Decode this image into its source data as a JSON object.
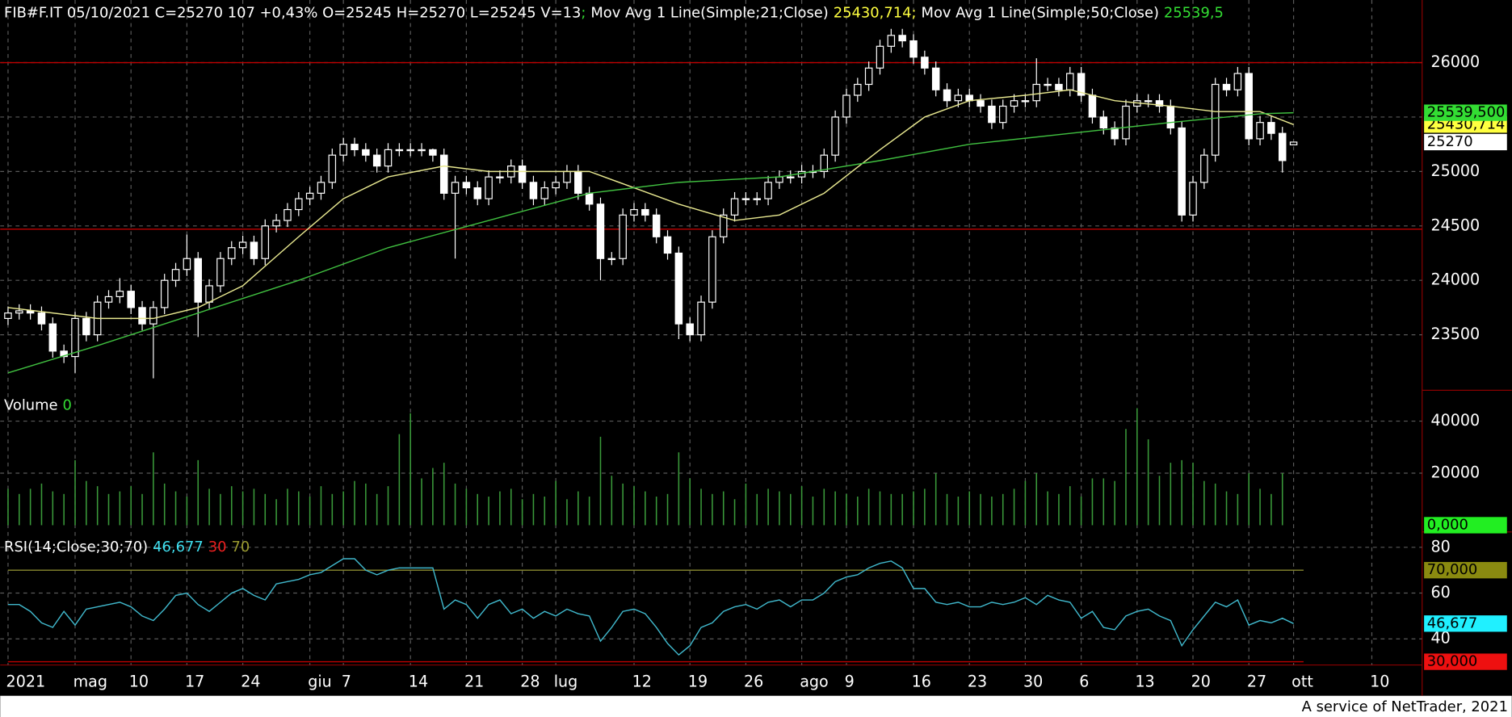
{
  "chart_data": [
    {
      "type": "candlestick",
      "header": [
        {
          "text": "FIB#F.IT 05/10/2021 C=25270 107 +0,43% O=25245 H=25270 L=25245 V=13",
          "color": "#ffffff"
        },
        {
          "text": ";",
          "color": "#33dd33"
        },
        {
          "text": "Mov Avg 1 Line(Simple;21;Close)",
          "color": "#ffffff"
        },
        {
          "text": "25430,714;",
          "color": "#ffff40"
        },
        {
          "text": "Mov Avg 1 Line(Simple;50;Close)",
          "color": "#ffffff"
        },
        {
          "text": "25539,5",
          "color": "#33dd33"
        }
      ],
      "xlim": [
        -0.7,
        126.5
      ],
      "ylim": [
        22990,
        26575
      ],
      "yticks": [
        23500,
        24000,
        24500,
        25000,
        25500,
        26000
      ],
      "hlines": [
        26000,
        24470
      ],
      "hline_color": "#c00000",
      "up_color": "#000000",
      "down_color": "#ffffff",
      "open": [
        23650,
        23700,
        23720,
        23700,
        23600,
        23350,
        23300,
        23650,
        23500,
        23800,
        23850,
        23900,
        23750,
        23600,
        23750,
        24000,
        24100,
        24200,
        23800,
        23950,
        24200,
        24300,
        24350,
        24200,
        24500,
        24550,
        24650,
        24750,
        24800,
        24900,
        25150,
        25250,
        25200,
        25150,
        25050,
        25200,
        25200,
        25200,
        25200,
        25150,
        24800,
        24900,
        24850,
        24750,
        24950,
        24950,
        25050,
        24900,
        24750,
        24850,
        24900,
        25000,
        24800,
        24700,
        24200,
        24200,
        24600,
        24650,
        24600,
        24400,
        24250,
        23600,
        23500,
        23800,
        24400,
        24600,
        24750,
        24750,
        24750,
        24900,
        24950,
        24950,
        25000,
        25000,
        25150,
        25500,
        25700,
        25800,
        25950,
        26150,
        26250,
        26200,
        26050,
        25950,
        25750,
        25650,
        25700,
        25650,
        25600,
        25450,
        25600,
        25650,
        25650,
        25800,
        25800,
        25750,
        25900,
        25700,
        25500,
        25400,
        25300,
        25600,
        25650,
        25650,
        25600,
        25400,
        24600,
        24900,
        25150,
        25800,
        25750,
        25900,
        25300,
        25450,
        25350,
        25245
      ],
      "high": [
        23760,
        23780,
        23780,
        23760,
        23660,
        23410,
        23710,
        23710,
        23860,
        23910,
        24020,
        23960,
        23810,
        23810,
        24060,
        24160,
        24420,
        24260,
        24010,
        24260,
        24360,
        24410,
        24410,
        24560,
        24610,
        24710,
        24810,
        24860,
        24960,
        25210,
        25310,
        25310,
        25260,
        25210,
        25260,
        25260,
        25260,
        25260,
        25210,
        25210,
        24960,
        24960,
        24910,
        25010,
        25010,
        25110,
        25110,
        24960,
        24910,
        24960,
        25060,
        25060,
        24860,
        24760,
        24260,
        24660,
        24710,
        24710,
        24660,
        24460,
        24310,
        23660,
        23860,
        24460,
        24660,
        24810,
        24810,
        24810,
        24960,
        25010,
        25010,
        25060,
        25060,
        25210,
        25560,
        25760,
        25860,
        26010,
        26210,
        26310,
        26310,
        26260,
        26110,
        26010,
        25810,
        25760,
        25760,
        25710,
        25660,
        25660,
        25710,
        25710,
        26040,
        25860,
        25860,
        25960,
        25960,
        25760,
        25560,
        25460,
        25660,
        25710,
        25710,
        25710,
        25660,
        25460,
        24960,
        25210,
        25860,
        25860,
        25960,
        25960,
        25510,
        25510,
        25410,
        25270
      ],
      "low": [
        23590,
        23640,
        23640,
        23540,
        23290,
        23240,
        23150,
        23440,
        23440,
        23740,
        23790,
        23690,
        23540,
        23100,
        23690,
        23940,
        24040,
        23480,
        23740,
        23890,
        24140,
        24240,
        24140,
        24140,
        24440,
        24490,
        24590,
        24690,
        24740,
        24840,
        25090,
        25140,
        25090,
        24990,
        24990,
        25140,
        25140,
        25140,
        25090,
        24740,
        24200,
        24790,
        24690,
        24690,
        24890,
        24890,
        24840,
        24690,
        24690,
        24790,
        24840,
        24740,
        24640,
        24000,
        24140,
        24140,
        24540,
        24540,
        24340,
        24190,
        23460,
        23440,
        23440,
        23740,
        24340,
        24540,
        24690,
        24690,
        24690,
        24840,
        24890,
        24890,
        24940,
        24940,
        25090,
        25440,
        25640,
        25740,
        25890,
        26090,
        26140,
        25990,
        25890,
        25690,
        25590,
        25590,
        25590,
        25540,
        25390,
        25390,
        25540,
        25590,
        25590,
        25740,
        25690,
        25690,
        25640,
        25440,
        25340,
        25240,
        25240,
        25540,
        25590,
        25540,
        25340,
        24540,
        24540,
        24840,
        25090,
        25690,
        25690,
        25240,
        25240,
        25290,
        24990,
        25245
      ],
      "close": [
        23700,
        23720,
        23700,
        23600,
        23350,
        23300,
        23650,
        23500,
        23800,
        23850,
        23900,
        23750,
        23600,
        23750,
        24000,
        24100,
        24200,
        23800,
        23950,
        24200,
        24300,
        24350,
        24200,
        24500,
        24550,
        24650,
        24750,
        24800,
        24900,
        25150,
        25250,
        25200,
        25150,
        25050,
        25200,
        25200,
        25200,
        25200,
        25150,
        24800,
        24900,
        24850,
        24750,
        24950,
        24950,
        25050,
        24900,
        24750,
        24850,
        24900,
        25000,
        24800,
        24700,
        24200,
        24200,
        24600,
        24650,
        24600,
        24400,
        24250,
        23600,
        23500,
        23800,
        24400,
        24600,
        24750,
        24750,
        24750,
        24900,
        24950,
        24950,
        25000,
        25000,
        25150,
        25500,
        25700,
        25800,
        25950,
        26150,
        26250,
        26200,
        26050,
        25950,
        25750,
        25650,
        25700,
        25650,
        25600,
        25450,
        25600,
        25650,
        25650,
        25800,
        25800,
        25750,
        25900,
        25700,
        25500,
        25400,
        25300,
        25600,
        25650,
        25650,
        25600,
        25400,
        24600,
        24900,
        25150,
        25800,
        25750,
        25900,
        25300,
        25450,
        25350,
        25100,
        25270
      ],
      "series": [
        {
          "color": "#e8e890",
          "x": [
            0,
            8,
            13,
            17,
            21,
            26,
            30,
            34,
            39,
            43,
            52,
            56,
            60,
            65,
            69,
            73,
            78,
            82,
            86,
            91,
            95,
            99,
            104,
            108,
            112,
            115
          ],
          "values": [
            23750,
            23650,
            23650,
            23750,
            23950,
            24400,
            24750,
            24950,
            25050,
            25000,
            25000,
            24850,
            24700,
            24550,
            24600,
            24800,
            25200,
            25500,
            25650,
            25700,
            25750,
            25650,
            25600,
            25550,
            25550,
            25430.714
          ]
        },
        {
          "color": "#40c040",
          "x": [
            0,
            8,
            17,
            26,
            34,
            43,
            52,
            60,
            69,
            78,
            86,
            95,
            104,
            112,
            115
          ],
          "values": [
            23150,
            23400,
            23700,
            24000,
            24300,
            24550,
            24800,
            24900,
            24950,
            25100,
            25250,
            25350,
            25450,
            25530,
            25539.5
          ]
        }
      ],
      "value_boxes": [
        {
          "value": 25430.714,
          "label": "25430,714",
          "color": "#ffff40"
        },
        {
          "value": 25270,
          "label": "25270",
          "color": "#ffffff"
        },
        {
          "value": 25539.5,
          "label": "25539,500",
          "color": "#33dd33"
        }
      ]
    },
    {
      "type": "bar",
      "legend": [
        {
          "text": "Volume",
          "color": "#ffffff"
        },
        {
          "text": "0",
          "color": "#33dd33"
        }
      ],
      "xlim": [
        -0.7,
        126.5
      ],
      "ylim": [
        -2600,
        51850
      ],
      "yticks": [
        20000,
        40000
      ],
      "color": "#3a9a3a",
      "values": [
        14000,
        12000,
        14000,
        16000,
        13000,
        12000,
        25000,
        17000,
        15000,
        12000,
        13000,
        15000,
        12000,
        28000,
        16000,
        13000,
        11000,
        25000,
        14000,
        12000,
        15000,
        13000,
        14000,
        12000,
        10000,
        14000,
        13000,
        11000,
        15000,
        12000,
        13000,
        17000,
        16000,
        12000,
        15000,
        35000,
        43000,
        18000,
        22000,
        24000,
        16000,
        14000,
        12000,
        11000,
        13000,
        14000,
        10000,
        12000,
        11000,
        17000,
        10000,
        13000,
        11000,
        34000,
        19000,
        16000,
        15000,
        13000,
        11000,
        12000,
        28000,
        18000,
        14000,
        12000,
        13000,
        10000,
        16000,
        12000,
        14000,
        13000,
        12000,
        15000,
        11000,
        14000,
        13000,
        12000,
        11000,
        14000,
        13000,
        12000,
        12000,
        13000,
        14000,
        20000,
        12000,
        11000,
        13000,
        12000,
        11000,
        12000,
        14000,
        17000,
        20000,
        13000,
        12000,
        15000,
        11000,
        18000,
        18000,
        17000,
        37000,
        45000,
        33000,
        19000,
        24000,
        25000,
        24000,
        17000,
        16000,
        13000,
        12000,
        20000,
        14000,
        12000,
        20000,
        0
      ],
      "value_boxes": [
        {
          "value": 0,
          "label": "0,000",
          "color": "#22ee22"
        }
      ]
    },
    {
      "type": "line",
      "legend": [
        {
          "text": "RSI(14;Close;30;70)",
          "color": "#ffffff"
        },
        {
          "text": "46,677",
          "color": "#40e0f0"
        },
        {
          "text": "30",
          "color": "#ee2020"
        },
        {
          "text": "70",
          "color": "#9a9a30"
        }
      ],
      "xlim": [
        -0.7,
        126.5
      ],
      "ylim": [
        28.6,
        86.7
      ],
      "yticks": [
        40,
        60,
        80
      ],
      "color": "#40b8cc",
      "hlines": [
        {
          "value": 70,
          "color": "#8a8a30"
        },
        {
          "value": 30,
          "color": "#c00000"
        }
      ],
      "values": [
        55,
        55,
        52,
        47,
        45,
        52,
        46,
        53,
        54,
        55,
        56,
        54,
        50,
        48,
        53,
        59,
        60,
        55,
        52,
        56,
        60,
        62,
        59,
        57,
        64,
        65,
        66,
        68,
        69,
        72,
        75,
        75,
        70,
        68,
        70,
        71,
        71,
        71,
        71,
        53,
        57,
        55,
        49,
        55,
        57,
        51,
        53,
        49,
        52,
        50,
        53,
        51,
        50,
        39,
        45,
        52,
        53,
        51,
        45,
        38,
        33,
        37,
        45,
        47,
        52,
        54,
        55,
        53,
        56,
        57,
        54,
        57,
        57,
        60,
        65,
        67,
        68,
        71,
        73,
        74,
        71,
        62,
        62,
        56,
        55,
        56,
        54,
        54,
        56,
        55,
        56,
        58,
        55,
        59,
        57,
        56,
        49,
        52,
        45,
        44,
        50,
        52,
        53,
        50,
        48,
        37,
        44,
        50,
        56,
        54,
        57,
        46,
        48,
        47,
        49,
        46.677
      ],
      "value_boxes": [
        {
          "value": 70,
          "label": "70,000",
          "color": "#8a8a10"
        },
        {
          "value": 46.677,
          "label": "46,677",
          "color": "#20f0ff"
        },
        {
          "value": 30,
          "label": "30,000",
          "color": "#ee1010"
        }
      ],
      "xticks": [
        {
          "value": 0,
          "label": "2021"
        },
        {
          "value": 6,
          "label": "mag"
        },
        {
          "value": 11,
          "label": "10"
        },
        {
          "value": 16,
          "label": "17"
        },
        {
          "value": 21,
          "label": "24"
        },
        {
          "value": 27,
          "label": "giu"
        },
        {
          "value": 30,
          "label": "7"
        },
        {
          "value": 36,
          "label": "14"
        },
        {
          "value": 41,
          "label": "21"
        },
        {
          "value": 46,
          "label": "28"
        },
        {
          "value": 49,
          "label": "lug"
        },
        {
          "value": 56,
          "label": "12"
        },
        {
          "value": 61,
          "label": "19"
        },
        {
          "value": 66,
          "label": "26"
        },
        {
          "value": 71,
          "label": "ago"
        },
        {
          "value": 75,
          "label": "9"
        },
        {
          "value": 81,
          "label": "16"
        },
        {
          "value": 86,
          "label": "23"
        },
        {
          "value": 91,
          "label": "30"
        },
        {
          "value": 96,
          "label": "6"
        },
        {
          "value": 101,
          "label": "13"
        },
        {
          "value": 106,
          "label": "20"
        },
        {
          "value": 111,
          "label": "27"
        },
        {
          "value": 115,
          "label": "ott"
        },
        {
          "value": 122,
          "label": "10"
        }
      ]
    }
  ],
  "footer": "A service of NetTrader, 2021"
}
